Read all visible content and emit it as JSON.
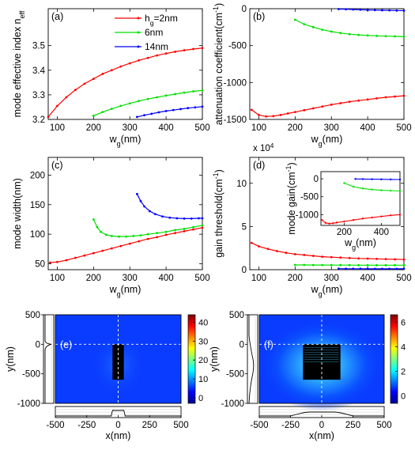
{
  "chart_data": [
    {
      "panel": "(a)",
      "type": "line",
      "ylabel_main": "mode effective index n",
      "ylabel_sub": "eff",
      "xlabel_main": "w",
      "xlabel_sub": "g",
      "xlabel_unit": "(nm)",
      "xlim": [
        75,
        500
      ],
      "ylim": [
        3.2,
        3.65
      ],
      "xticks": [
        100,
        200,
        300,
        400,
        500
      ],
      "yticks": [
        3.2,
        3.3,
        3.4,
        3.5
      ],
      "legend": [
        {
          "prefix": "h",
          "sub": "g",
          "text": "=2nm",
          "color": "#ff0000"
        },
        {
          "text": "6nm",
          "color": "#00e000"
        },
        {
          "text": "14nm",
          "color": "#0000ff"
        }
      ],
      "series": [
        {
          "color": "#ff0000",
          "x": [
            75,
            100,
            125,
            150,
            175,
            200,
            225,
            250,
            275,
            300,
            325,
            350,
            375,
            400,
            425,
            450,
            475,
            500
          ],
          "y": [
            3.21,
            3.255,
            3.29,
            3.32,
            3.345,
            3.365,
            3.385,
            3.4,
            3.415,
            3.428,
            3.44,
            3.45,
            3.46,
            3.468,
            3.475,
            3.481,
            3.486,
            3.49
          ]
        },
        {
          "color": "#00e000",
          "x": [
            200,
            225,
            250,
            275,
            300,
            325,
            350,
            375,
            400,
            425,
            450,
            475,
            500
          ],
          "y": [
            3.215,
            3.23,
            3.243,
            3.255,
            3.265,
            3.275,
            3.283,
            3.29,
            3.297,
            3.303,
            3.309,
            3.314,
            3.318
          ]
        },
        {
          "color": "#0000ff",
          "x": [
            320,
            340,
            360,
            380,
            400,
            420,
            440,
            460,
            480,
            500
          ],
          "y": [
            3.21,
            3.217,
            3.223,
            3.229,
            3.234,
            3.238,
            3.242,
            3.246,
            3.249,
            3.252
          ]
        }
      ]
    },
    {
      "panel": "(b)",
      "type": "line",
      "ylabel_main": "attenuation coefficient(cm",
      "ylabel_sup": "-1",
      "ylabel_end": ")",
      "xlabel_main": "w",
      "xlabel_sub": "g",
      "xlabel_unit": "(nm)",
      "xlim": [
        75,
        500
      ],
      "ylim": [
        -1500,
        0
      ],
      "xticks": [
        100,
        200,
        300,
        400,
        500
      ],
      "yticks": [
        -1500,
        -1000,
        -500,
        0
      ],
      "series": [
        {
          "color": "#ff0000",
          "x": [
            80,
            100,
            120,
            140,
            160,
            180,
            200,
            225,
            250,
            275,
            300,
            325,
            350,
            375,
            400,
            425,
            450,
            475,
            500
          ],
          "y": [
            -1370,
            -1440,
            -1460,
            -1455,
            -1440,
            -1420,
            -1400,
            -1375,
            -1350,
            -1325,
            -1300,
            -1280,
            -1260,
            -1245,
            -1230,
            -1215,
            -1200,
            -1190,
            -1180
          ]
        },
        {
          "color": "#00e000",
          "x": [
            200,
            225,
            250,
            275,
            300,
            325,
            350,
            375,
            400,
            425,
            450,
            475,
            500
          ],
          "y": [
            -150,
            -210,
            -250,
            -285,
            -310,
            -330,
            -345,
            -355,
            -362,
            -368,
            -372,
            -375,
            -378
          ]
        },
        {
          "color": "#0000ff",
          "x": [
            320,
            340,
            360,
            380,
            400,
            420,
            440,
            460,
            480,
            500
          ],
          "y": [
            -5,
            -8,
            -11,
            -14,
            -17,
            -19,
            -21,
            -23,
            -25,
            -27
          ]
        }
      ]
    },
    {
      "panel": "(c)",
      "type": "line",
      "ylabel_main": "mode width(nm)",
      "xlabel_main": "w",
      "xlabel_sub": "g",
      "xlabel_unit": "(nm)",
      "xlim": [
        75,
        500
      ],
      "ylim": [
        40,
        230
      ],
      "xticks": [
        100,
        200,
        300,
        400,
        500
      ],
      "yticks": [
        50,
        100,
        150,
        200
      ],
      "series": [
        {
          "color": "#ff0000",
          "x": [
            80,
            100,
            125,
            150,
            175,
            200,
            225,
            250,
            275,
            300,
            325,
            350,
            375,
            400,
            425,
            450,
            475,
            500
          ],
          "y": [
            52,
            53,
            56,
            60,
            64,
            68,
            72,
            76,
            80,
            84,
            88,
            92,
            95,
            99,
            102,
            105,
            108,
            111
          ]
        },
        {
          "color": "#00e000",
          "x": [
            200,
            210,
            220,
            235,
            250,
            270,
            290,
            310,
            330,
            350,
            375,
            400,
            425,
            450,
            475,
            500
          ],
          "y": [
            125,
            112,
            104,
            99,
            97,
            96,
            96,
            97,
            98,
            100,
            102,
            104,
            107,
            109,
            112,
            115
          ]
        },
        {
          "color": "#0000ff",
          "x": [
            320,
            330,
            340,
            355,
            370,
            390,
            410,
            430,
            450,
            470,
            490,
            500
          ],
          "y": [
            168,
            156,
            147,
            139,
            134,
            130,
            128,
            127,
            126.5,
            126.5,
            127,
            127
          ]
        }
      ]
    },
    {
      "panel": "(d)",
      "type": "line",
      "ylabel_main": "gain threshold(cm",
      "ylabel_sup": "-1",
      "ylabel_end": ")",
      "xlabel_main": "w",
      "xlabel_sub": "g",
      "xlabel_unit": "(nm)",
      "y_multiplier": "x 10",
      "y_multiplier_exp": "4",
      "xlim": [
        75,
        500
      ],
      "ylim": [
        0,
        13
      ],
      "xticks": [
        100,
        200,
        300,
        400,
        500
      ],
      "yticks": [
        0,
        5,
        10
      ],
      "series": [
        {
          "color": "#ff0000",
          "x": [
            80,
            100,
            125,
            150,
            175,
            200,
            225,
            250,
            275,
            300,
            325,
            350,
            375,
            400,
            425,
            450,
            475,
            500
          ],
          "y": [
            3.1,
            2.7,
            2.4,
            2.15,
            1.95,
            1.8,
            1.7,
            1.6,
            1.5,
            1.45,
            1.4,
            1.35,
            1.3,
            1.28,
            1.25,
            1.22,
            1.2,
            1.18
          ]
        },
        {
          "color": "#00e000",
          "x": [
            200,
            225,
            250,
            275,
            300,
            325,
            350,
            375,
            400,
            425,
            450,
            475,
            500
          ],
          "y": [
            0.55,
            0.55,
            0.54,
            0.54,
            0.53,
            0.53,
            0.53,
            0.52,
            0.52,
            0.52,
            0.52,
            0.52,
            0.52
          ]
        },
        {
          "color": "#0000ff",
          "x": [
            320,
            340,
            360,
            380,
            400,
            420,
            440,
            460,
            480,
            500
          ],
          "y": [
            0.12,
            0.11,
            0.11,
            0.11,
            0.1,
            0.1,
            0.1,
            0.1,
            0.1,
            0.1
          ]
        }
      ],
      "inset": {
        "ylabel_main": "mode gain(cm",
        "ylabel_sup": "-1",
        "ylabel_end": ")",
        "xlabel_main": "w",
        "xlabel_sub": "g",
        "xlabel_unit": "(nm)",
        "xlim": [
          75,
          500
        ],
        "ylim": [
          -1300,
          200
        ],
        "xticks": [
          200,
          400
        ],
        "yticks": [
          -1000,
          -500,
          0
        ],
        "series": [
          {
            "color": "#ff0000",
            "x": [
              80,
              100,
              120,
              140,
              160,
              200,
              250,
              300,
              350,
              400,
              450,
              500
            ],
            "y": [
              -1150,
              -1230,
              -1250,
              -1240,
              -1220,
              -1190,
              -1150,
              -1110,
              -1080,
              -1050,
              -1020,
              -1000
            ]
          },
          {
            "color": "#00e000",
            "x": [
              200,
              250,
              300,
              350,
              400,
              450,
              500
            ],
            "y": [
              -120,
              -220,
              -270,
              -300,
              -320,
              -330,
              -340
            ]
          },
          {
            "color": "#0000ff",
            "x": [
              260,
              300,
              350,
              400,
              450,
              500
            ],
            "y": [
              -5,
              -8,
              -12,
              -15,
              -18,
              -20
            ]
          }
        ]
      }
    },
    {
      "panel": "(e)",
      "type": "heatmap",
      "xlabel": "x(nm)",
      "ylabel": "y(nm)",
      "xlim": [
        -500,
        500
      ],
      "ylim": [
        -1000,
        500
      ],
      "xticks": [
        -500,
        -250,
        0,
        250,
        500
      ],
      "yticks": [
        500,
        0,
        -500,
        -1000
      ],
      "colorbar_ticks": [
        0,
        10,
        20,
        30,
        40
      ],
      "colorbar_range": [
        -3,
        44
      ],
      "waveguide": {
        "x": [
          -45,
          45
        ],
        "y": [
          -600,
          0
        ]
      }
    },
    {
      "panel": "(f)",
      "type": "heatmap",
      "xlabel": "x(nm)",
      "ylabel": "y(nm)",
      "xlim": [
        -500,
        500
      ],
      "ylim": [
        -1000,
        500
      ],
      "xticks": [
        -500,
        -250,
        0,
        250,
        500
      ],
      "yticks": [
        500,
        0,
        -500,
        -1000
      ],
      "colorbar_ticks": [
        0,
        2,
        4,
        6
      ],
      "colorbar_range": [
        -0.6,
        6.6
      ],
      "waveguide": {
        "x": [
          -150,
          150
        ],
        "y": [
          -600,
          0
        ]
      }
    }
  ]
}
